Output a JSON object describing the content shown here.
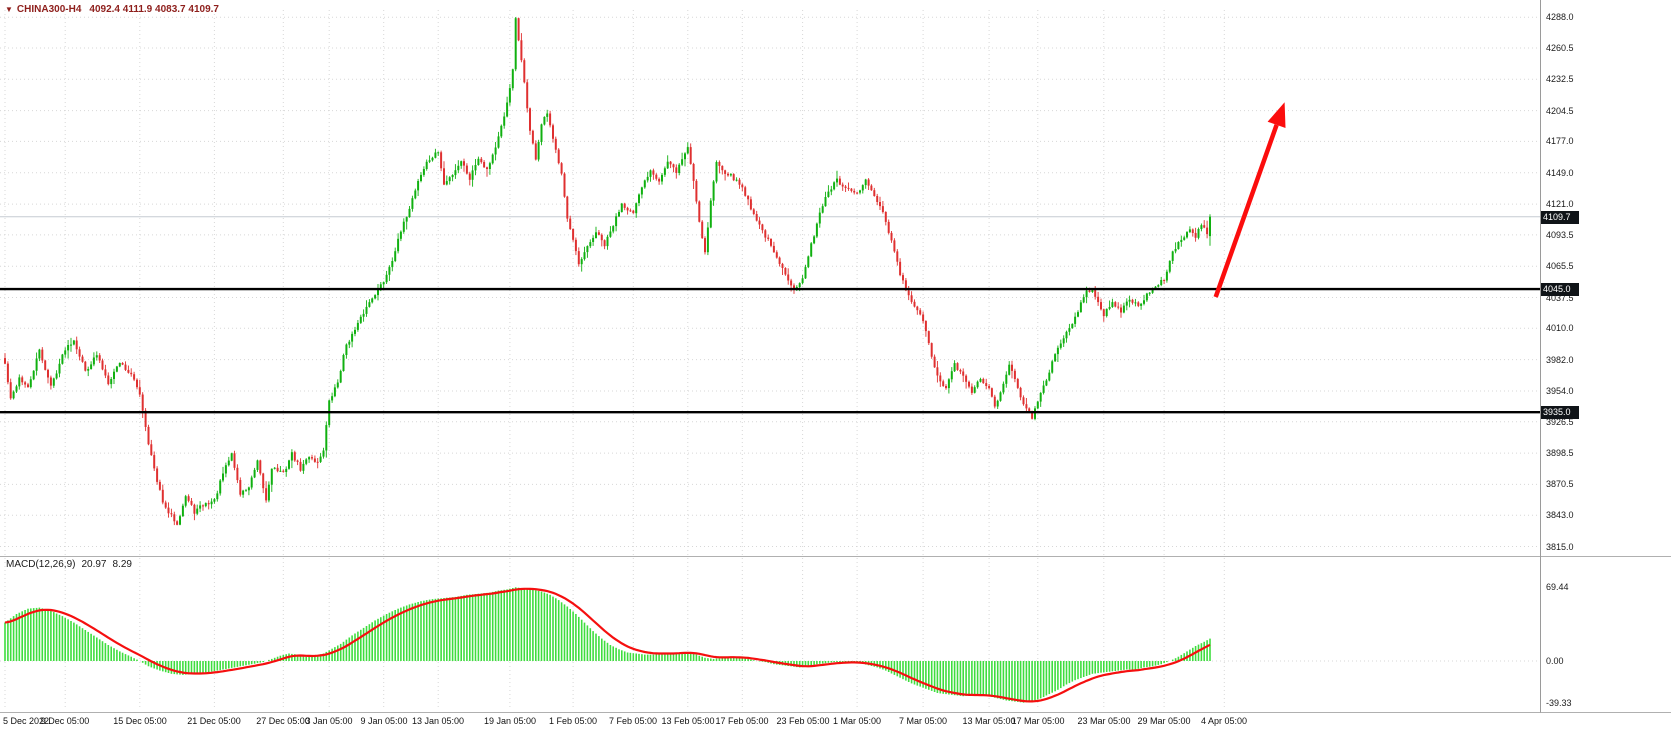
{
  "icons": {
    "menu_arrow": "▼"
  },
  "header": {
    "symbol": "CHINA300-H4",
    "ohlc": "4092.4 4111.9 4083.7 4109.7"
  },
  "price_axis": {
    "tick_labels": [
      "4288.0",
      "4260.5",
      "4232.5",
      "4204.5",
      "4177.0",
      "4149.0",
      "4121.0",
      "4093.5",
      "4065.5",
      "4037.5",
      "4010.0",
      "3982.0",
      "3954.0",
      "3926.5",
      "3898.5",
      "3870.5",
      "3843.0",
      "3815.0"
    ],
    "level_tags": [
      {
        "label": "4045.0",
        "value": 4045.0
      },
      {
        "label": "3935.0",
        "value": 3935.0
      }
    ],
    "current_tag": {
      "label": "4109.7",
      "value": 4109.7
    }
  },
  "time_axis": {
    "labels": [
      {
        "label": "5 Dec 2022",
        "i": 0
      },
      {
        "label": "9 Dec 05:00",
        "i": 21
      },
      {
        "label": "15 Dec 05:00",
        "i": 47
      },
      {
        "label": "21 Dec 05:00",
        "i": 73
      },
      {
        "label": "27 Dec 05:00",
        "i": 97
      },
      {
        "label": "3 Jan 05:00",
        "i": 113
      },
      {
        "label": "9 Jan 05:00",
        "i": 132
      },
      {
        "label": "13 Jan 05:00",
        "i": 151
      },
      {
        "label": "19 Jan 05:00",
        "i": 176
      },
      {
        "label": "1 Feb 05:00",
        "i": 198
      },
      {
        "label": "7 Feb 05:00",
        "i": 219
      },
      {
        "label": "13 Feb 05:00",
        "i": 238
      },
      {
        "label": "17 Feb 05:00",
        "i": 257
      },
      {
        "label": "23 Feb 05:00",
        "i": 278
      },
      {
        "label": "1 Mar 05:00",
        "i": 297
      },
      {
        "label": "7 Mar 05:00",
        "i": 320
      },
      {
        "label": "13 Mar 05:00",
        "i": 343
      },
      {
        "label": "17 Mar 05:00",
        "i": 360
      },
      {
        "label": "23 Mar 05:00",
        "i": 383
      },
      {
        "label": "29 Mar 05:00",
        "i": 404
      },
      {
        "label": "4 Apr 05:00",
        "i": 425
      }
    ]
  },
  "macd_panel": {
    "title": "MACD(12,26,9)",
    "main_value": "20.97",
    "signal_value": "8.29",
    "tick_labels": [
      {
        "label": "69.44",
        "value": 69.44
      },
      {
        "label": "0.00",
        "value": 0
      },
      {
        "label": "-39.33",
        "value": -39.33
      }
    ]
  },
  "colors": {
    "up": "#10b010",
    "down": "#df3030",
    "histogram": "#3fdd3f",
    "signal_line": "#f50f0f",
    "level_line": "#000000",
    "grid": "#d7d7d7",
    "current_price_line": "#c6ccd2",
    "arrow": "#fb0d0d",
    "header_text": "#8e1f1c",
    "tag_bg": "#101418",
    "separator": "#b0b0b0"
  },
  "chart_data": {
    "type": "candlestick",
    "symbol": "CHINA300",
    "timeframe": "H4",
    "title": "CHINA300-H4",
    "price_ylim": [
      3815.0,
      4288.0
    ],
    "n_candles": 421,
    "last_candle": {
      "open": 4092.4,
      "high": 4111.9,
      "low": 4083.7,
      "close": 4109.7
    },
    "levels": [
      4045.0,
      3935.0
    ],
    "price_anchors": [
      [
        0,
        3978
      ],
      [
        2,
        3946
      ],
      [
        5,
        3966
      ],
      [
        8,
        3956
      ],
      [
        12,
        3990
      ],
      [
        16,
        3958
      ],
      [
        21,
        3992
      ],
      [
        24,
        4000
      ],
      [
        28,
        3972
      ],
      [
        32,
        3986
      ],
      [
        36,
        3962
      ],
      [
        40,
        3980
      ],
      [
        44,
        3968
      ],
      [
        47,
        3952
      ],
      [
        50,
        3908
      ],
      [
        53,
        3872
      ],
      [
        56,
        3848
      ],
      [
        60,
        3836
      ],
      [
        63,
        3860
      ],
      [
        66,
        3846
      ],
      [
        69,
        3852
      ],
      [
        73,
        3856
      ],
      [
        76,
        3880
      ],
      [
        79,
        3898
      ],
      [
        82,
        3862
      ],
      [
        85,
        3868
      ],
      [
        88,
        3890
      ],
      [
        91,
        3856
      ],
      [
        93,
        3886
      ],
      [
        97,
        3880
      ],
      [
        100,
        3898
      ],
      [
        103,
        3884
      ],
      [
        106,
        3896
      ],
      [
        109,
        3890
      ],
      [
        111,
        3902
      ],
      [
        113,
        3944
      ],
      [
        116,
        3962
      ],
      [
        119,
        3996
      ],
      [
        122,
        4008
      ],
      [
        125,
        4024
      ],
      [
        128,
        4038
      ],
      [
        132,
        4052
      ],
      [
        135,
        4072
      ],
      [
        138,
        4096
      ],
      [
        141,
        4118
      ],
      [
        144,
        4142
      ],
      [
        147,
        4158
      ],
      [
        151,
        4168
      ],
      [
        153,
        4138
      ],
      [
        156,
        4148
      ],
      [
        159,
        4160
      ],
      [
        162,
        4144
      ],
      [
        165,
        4163
      ],
      [
        168,
        4152
      ],
      [
        171,
        4172
      ],
      [
        174,
        4198
      ],
      [
        176,
        4226
      ],
      [
        177,
        4240
      ],
      [
        178,
        4287
      ],
      [
        179,
        4266
      ],
      [
        181,
        4230
      ],
      [
        183,
        4186
      ],
      [
        185,
        4162
      ],
      [
        187,
        4192
      ],
      [
        189,
        4202
      ],
      [
        191,
        4178
      ],
      [
        194,
        4150
      ],
      [
        196,
        4108
      ],
      [
        198,
        4088
      ],
      [
        200,
        4066
      ],
      [
        203,
        4082
      ],
      [
        206,
        4096
      ],
      [
        209,
        4084
      ],
      [
        212,
        4102
      ],
      [
        215,
        4122
      ],
      [
        219,
        4112
      ],
      [
        222,
        4136
      ],
      [
        225,
        4152
      ],
      [
        228,
        4142
      ],
      [
        231,
        4158
      ],
      [
        234,
        4150
      ],
      [
        238,
        4172
      ],
      [
        240,
        4142
      ],
      [
        242,
        4106
      ],
      [
        244,
        4078
      ],
      [
        246,
        4124
      ],
      [
        248,
        4158
      ],
      [
        251,
        4150
      ],
      [
        254,
        4144
      ],
      [
        257,
        4136
      ],
      [
        260,
        4118
      ],
      [
        263,
        4102
      ],
      [
        266,
        4088
      ],
      [
        269,
        4072
      ],
      [
        272,
        4058
      ],
      [
        275,
        4046
      ],
      [
        278,
        4054
      ],
      [
        281,
        4084
      ],
      [
        284,
        4114
      ],
      [
        287,
        4132
      ],
      [
        290,
        4142
      ],
      [
        293,
        4134
      ],
      [
        297,
        4130
      ],
      [
        300,
        4142
      ],
      [
        303,
        4128
      ],
      [
        306,
        4112
      ],
      [
        309,
        4088
      ],
      [
        312,
        4058
      ],
      [
        315,
        4038
      ],
      [
        318,
        4026
      ],
      [
        320,
        4016
      ],
      [
        322,
        3996
      ],
      [
        325,
        3966
      ],
      [
        328,
        3956
      ],
      [
        331,
        3978
      ],
      [
        334,
        3966
      ],
      [
        337,
        3954
      ],
      [
        340,
        3964
      ],
      [
        343,
        3956
      ],
      [
        345,
        3940
      ],
      [
        347,
        3954
      ],
      [
        350,
        3978
      ],
      [
        353,
        3956
      ],
      [
        355,
        3944
      ],
      [
        358,
        3930
      ],
      [
        360,
        3944
      ],
      [
        363,
        3964
      ],
      [
        366,
        3988
      ],
      [
        369,
        4002
      ],
      [
        372,
        4014
      ],
      [
        375,
        4032
      ],
      [
        377,
        4042
      ],
      [
        379,
        4046
      ],
      [
        381,
        4034
      ],
      [
        383,
        4022
      ],
      [
        386,
        4032
      ],
      [
        389,
        4026
      ],
      [
        392,
        4036
      ],
      [
        395,
        4030
      ],
      [
        398,
        4040
      ],
      [
        401,
        4046
      ],
      [
        404,
        4054
      ],
      [
        407,
        4078
      ],
      [
        410,
        4090
      ],
      [
        413,
        4098
      ],
      [
        415,
        4092
      ],
      [
        417,
        4102
      ],
      [
        419,
        4096
      ],
      [
        420,
        4109.7
      ]
    ],
    "macd": {
      "params": [
        12,
        26,
        9
      ],
      "last_main": 20.97,
      "last_signal": 8.29,
      "ylim": [
        -39.33,
        69.44
      ],
      "anchors": [
        [
          0,
          36
        ],
        [
          4,
          44
        ],
        [
          8,
          49
        ],
        [
          12,
          50
        ],
        [
          16,
          47
        ],
        [
          20,
          42
        ],
        [
          24,
          36
        ],
        [
          28,
          29
        ],
        [
          32,
          22
        ],
        [
          36,
          15
        ],
        [
          40,
          9
        ],
        [
          44,
          4
        ],
        [
          47,
          0
        ],
        [
          50,
          -5
        ],
        [
          54,
          -9
        ],
        [
          58,
          -12
        ],
        [
          62,
          -13
        ],
        [
          66,
          -12
        ],
        [
          70,
          -11
        ],
        [
          74,
          -9
        ],
        [
          78,
          -7
        ],
        [
          82,
          -5
        ],
        [
          86,
          -3
        ],
        [
          90,
          -1
        ],
        [
          93,
          2
        ],
        [
          96,
          5
        ],
        [
          99,
          7
        ],
        [
          102,
          6
        ],
        [
          105,
          4
        ],
        [
          108,
          5
        ],
        [
          111,
          7
        ],
        [
          113,
          10
        ],
        [
          117,
          16
        ],
        [
          121,
          24
        ],
        [
          125,
          31
        ],
        [
          129,
          38
        ],
        [
          133,
          44
        ],
        [
          137,
          49
        ],
        [
          141,
          53
        ],
        [
          145,
          56
        ],
        [
          149,
          58
        ],
        [
          153,
          59
        ],
        [
          157,
          60
        ],
        [
          161,
          62
        ],
        [
          165,
          63
        ],
        [
          169,
          64
        ],
        [
          172,
          66
        ],
        [
          175,
          67
        ],
        [
          178,
          69
        ],
        [
          181,
          68
        ],
        [
          184,
          67
        ],
        [
          187,
          65
        ],
        [
          190,
          62
        ],
        [
          193,
          57
        ],
        [
          196,
          51
        ],
        [
          199,
          44
        ],
        [
          202,
          36
        ],
        [
          205,
          28
        ],
        [
          208,
          21
        ],
        [
          211,
          15
        ],
        [
          214,
          11
        ],
        [
          217,
          8
        ],
        [
          220,
          7
        ],
        [
          223,
          6
        ],
        [
          226,
          6
        ],
        [
          229,
          7
        ],
        [
          232,
          7
        ],
        [
          235,
          8
        ],
        [
          238,
          8
        ],
        [
          241,
          6
        ],
        [
          244,
          3
        ],
        [
          247,
          2
        ],
        [
          250,
          3
        ],
        [
          253,
          4
        ],
        [
          256,
          3
        ],
        [
          259,
          2
        ],
        [
          262,
          0
        ],
        [
          265,
          -1
        ],
        [
          268,
          -3
        ],
        [
          271,
          -4
        ],
        [
          274,
          -5
        ],
        [
          277,
          -6
        ],
        [
          280,
          -5
        ],
        [
          283,
          -3
        ],
        [
          286,
          -2
        ],
        [
          289,
          -1
        ],
        [
          292,
          -1
        ],
        [
          295,
          -1
        ],
        [
          298,
          -2
        ],
        [
          301,
          -4
        ],
        [
          304,
          -6
        ],
        [
          307,
          -9
        ],
        [
          310,
          -13
        ],
        [
          313,
          -17
        ],
        [
          316,
          -21
        ],
        [
          319,
          -24
        ],
        [
          322,
          -27
        ],
        [
          325,
          -30
        ],
        [
          328,
          -31
        ],
        [
          331,
          -32
        ],
        [
          334,
          -33
        ],
        [
          337,
          -32
        ],
        [
          340,
          -32
        ],
        [
          343,
          -33
        ],
        [
          346,
          -35
        ],
        [
          349,
          -37
        ],
        [
          352,
          -38
        ],
        [
          355,
          -39
        ],
        [
          358,
          -38
        ],
        [
          361,
          -35
        ],
        [
          364,
          -31
        ],
        [
          367,
          -27
        ],
        [
          370,
          -22
        ],
        [
          373,
          -18
        ],
        [
          376,
          -15
        ],
        [
          379,
          -12
        ],
        [
          382,
          -11
        ],
        [
          385,
          -10
        ],
        [
          388,
          -9
        ],
        [
          391,
          -8
        ],
        [
          394,
          -8
        ],
        [
          397,
          -6
        ],
        [
          400,
          -5
        ],
        [
          403,
          -3
        ],
        [
          406,
          0
        ],
        [
          409,
          4
        ],
        [
          412,
          9
        ],
        [
          415,
          14
        ],
        [
          418,
          18
        ],
        [
          420,
          21
        ]
      ]
    },
    "arrow": {
      "type": "arrow",
      "from": {
        "i": 422,
        "price": 4038
      },
      "to": {
        "i": 446,
        "price": 4212
      }
    }
  }
}
